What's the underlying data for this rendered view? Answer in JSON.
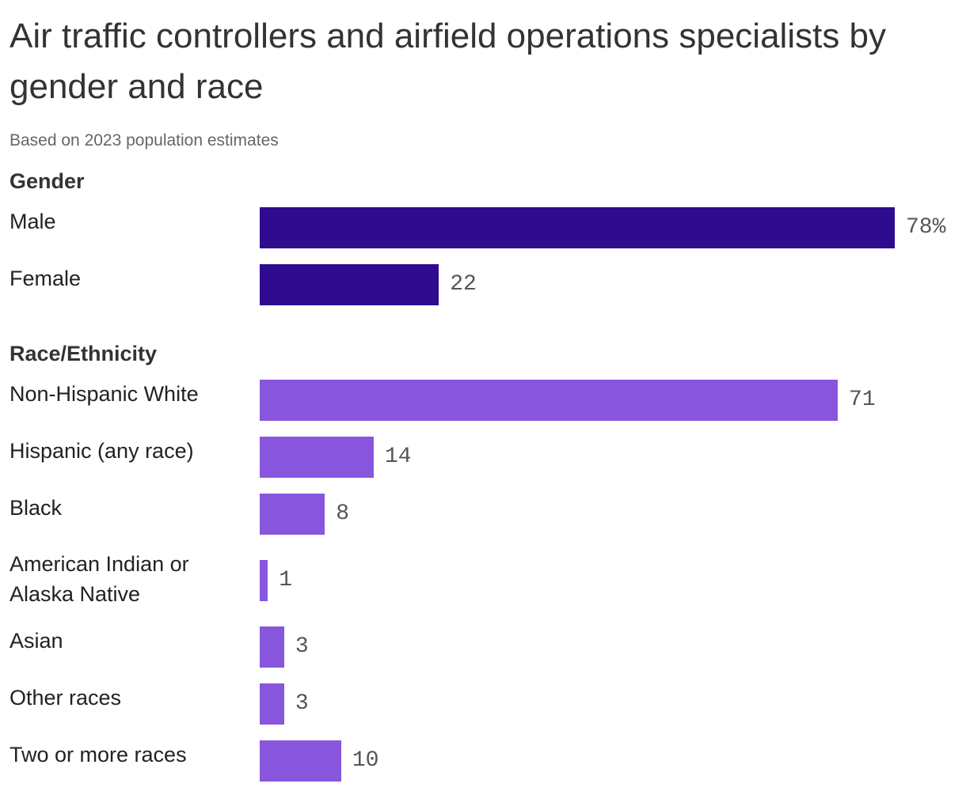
{
  "chart_data": {
    "type": "bar",
    "orientation": "horizontal",
    "title": "Air traffic controllers and airfield operations specialists by gender and race",
    "subtitle": "Based on 2023 population estimates",
    "unit": "%",
    "xlim": [
      0,
      78
    ],
    "groups": [
      {
        "name": "Gender",
        "color": "#2e0b8f",
        "categories": [
          "Male",
          "Female"
        ],
        "values": [
          78,
          22
        ],
        "labels": [
          "78%",
          "22"
        ]
      },
      {
        "name": "Race/Ethnicity",
        "color": "#8855dd",
        "categories": [
          "Non-Hispanic White",
          "Hispanic (any race)",
          "Black",
          "American Indian or Alaska Native",
          "Asian",
          "Other races",
          "Two or more races"
        ],
        "values": [
          71,
          14,
          8,
          1,
          3,
          3,
          10
        ],
        "labels": [
          "71",
          "14",
          "8",
          "1",
          "3",
          "3",
          "10"
        ]
      }
    ]
  }
}
